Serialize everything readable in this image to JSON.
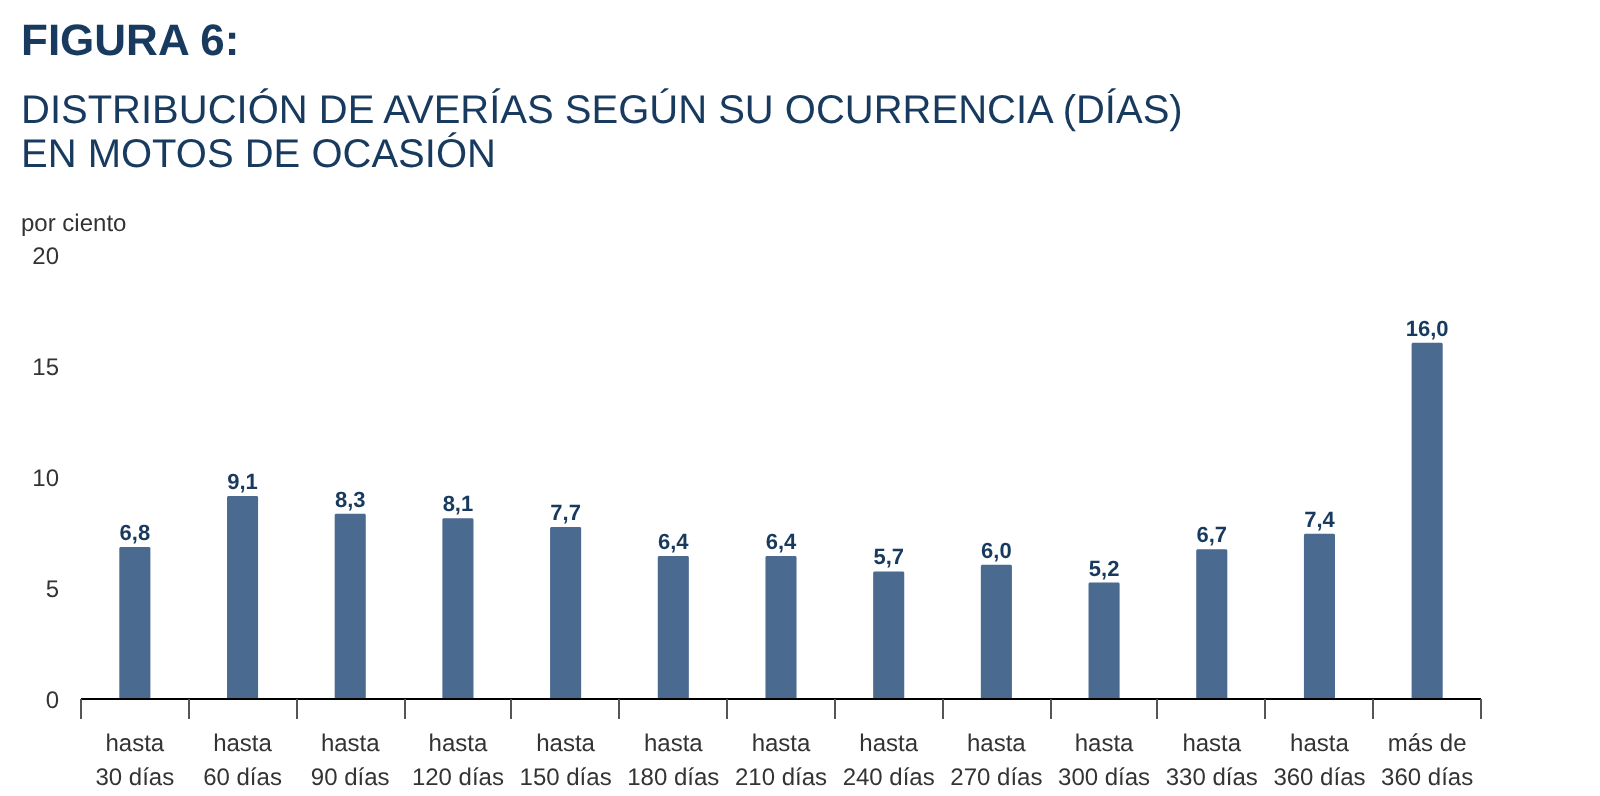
{
  "chart_data": {
    "type": "bar",
    "title": "FIGURA 6:",
    "subtitle": "DISTRIBUCIÓN DE AVERÍAS SEGÚN SU OCURRENCIA (DÍAS)\nEN MOTOS DE OCASIÓN",
    "ylabel": "por ciento",
    "categories": [
      "hasta\n30 días",
      "hasta\n60 días",
      "hasta\n90 días",
      "hasta\n120 días",
      "hasta\n150 días",
      "hasta\n180 días",
      "hasta\n210 días",
      "hasta\n240 días",
      "hasta\n270 días",
      "hasta\n300 días",
      "hasta\n330 días",
      "hasta\n360 días",
      "más de\n360 días"
    ],
    "values": [
      6.8,
      9.1,
      8.3,
      8.1,
      7.7,
      6.4,
      6.4,
      5.7,
      6.0,
      5.2,
      6.7,
      7.4,
      16.0
    ],
    "value_labels": [
      "6,8",
      "9,1",
      "8,3",
      "8,1",
      "7,7",
      "6,4",
      "6,4",
      "5,7",
      "6,0",
      "5,2",
      "6,7",
      "7,4",
      "16,0"
    ],
    "color": "#4a6a90",
    "ylim": [
      0,
      20
    ],
    "yticks": [
      0,
      5,
      10,
      15,
      20
    ],
    "grid": false
  }
}
